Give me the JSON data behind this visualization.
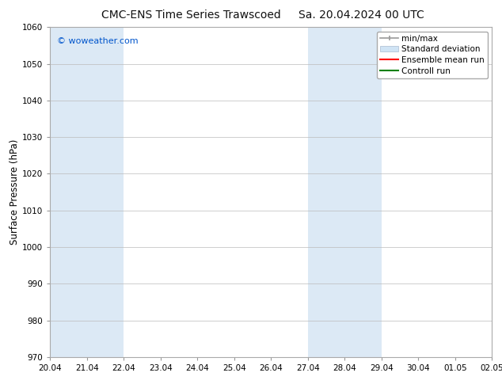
{
  "title_left": "CMC-ENS Time Series Trawscoed",
  "title_right": "Sa. 20.04.2024 00 UTC",
  "ylabel": "Surface Pressure (hPa)",
  "ylim": [
    970,
    1060
  ],
  "yticks": [
    970,
    980,
    990,
    1000,
    1010,
    1020,
    1030,
    1040,
    1050,
    1060
  ],
  "x_labels": [
    "20.04",
    "21.04",
    "22.04",
    "23.04",
    "24.04",
    "25.04",
    "26.04",
    "27.04",
    "28.04",
    "29.04",
    "30.04",
    "01.05",
    "02.05"
  ],
  "x_values": [
    0,
    1,
    2,
    3,
    4,
    5,
    6,
    7,
    8,
    9,
    10,
    11,
    12
  ],
  "shaded_regions": [
    {
      "xmin": 0,
      "xmax": 2,
      "color": "#dce9f5"
    },
    {
      "xmin": 7,
      "xmax": 9,
      "color": "#dce9f5"
    }
  ],
  "watermark": "© woweather.com",
  "watermark_color": "#0055cc",
  "background_color": "#ffffff",
  "plot_bg_color": "#ffffff",
  "grid_color": "#bbbbbb",
  "title_fontsize": 10,
  "tick_fontsize": 7.5,
  "ylabel_fontsize": 8.5,
  "legend_fontsize": 7.5
}
